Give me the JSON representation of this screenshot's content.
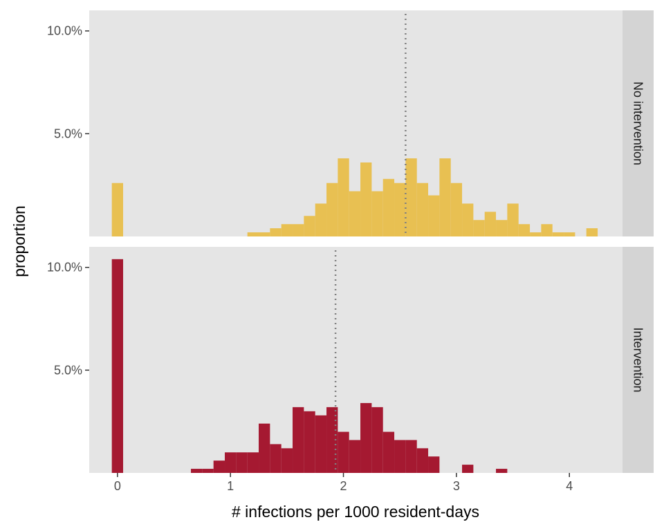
{
  "chart_data": {
    "type": "bar",
    "subtype": "faceted-histogram",
    "xlabel": "# infections per 1000 resident-days",
    "ylabel": "proportion",
    "x_ticks": [
      0,
      1,
      2,
      3,
      4
    ],
    "x_tick_labels": [
      "0",
      "1",
      "2",
      "3",
      "4"
    ],
    "xlim": [
      -0.25,
      4.47
    ],
    "y_ticks": [
      0.05,
      0.1
    ],
    "y_tick_labels": [
      "5.0%",
      "10.0%"
    ],
    "ylim": [
      0,
      0.11
    ],
    "bin_width": 0.1,
    "grid": false,
    "panel_background": "#e5e5e5",
    "strip_background": "#d4d4d4",
    "facets": [
      {
        "name": "No intervention",
        "color": "#e8c052",
        "mean_line": 2.55,
        "bin_centers": [
          0.0,
          1.2,
          1.3,
          1.4,
          1.5,
          1.6,
          1.7,
          1.8,
          1.9,
          2.0,
          2.1,
          2.2,
          2.3,
          2.4,
          2.5,
          2.6,
          2.7,
          2.8,
          2.9,
          3.0,
          3.1,
          3.2,
          3.3,
          3.4,
          3.5,
          3.6,
          3.7,
          3.8,
          3.9,
          4.0,
          4.2
        ],
        "values": [
          0.026,
          0.002,
          0.002,
          0.004,
          0.006,
          0.006,
          0.01,
          0.016,
          0.026,
          0.038,
          0.022,
          0.036,
          0.022,
          0.028,
          0.026,
          0.038,
          0.026,
          0.02,
          0.038,
          0.026,
          0.016,
          0.008,
          0.012,
          0.008,
          0.016,
          0.006,
          0.002,
          0.006,
          0.002,
          0.002,
          0.004
        ]
      },
      {
        "name": "Intervention",
        "color": "#a51931",
        "mean_line": 1.93,
        "bin_centers": [
          0.0,
          0.7,
          0.8,
          0.9,
          1.0,
          1.1,
          1.2,
          1.3,
          1.4,
          1.5,
          1.6,
          1.7,
          1.8,
          1.9,
          2.0,
          2.1,
          2.2,
          2.3,
          2.4,
          2.5,
          2.6,
          2.7,
          2.8,
          2.9,
          3.1,
          3.4
        ],
        "values": [
          0.104,
          0.002,
          0.002,
          0.006,
          0.01,
          0.01,
          0.01,
          0.024,
          0.014,
          0.012,
          0.032,
          0.03,
          0.028,
          0.032,
          0.02,
          0.016,
          0.034,
          0.032,
          0.02,
          0.016,
          0.016,
          0.012,
          0.008,
          0.0,
          0.004,
          0.002
        ]
      }
    ]
  }
}
